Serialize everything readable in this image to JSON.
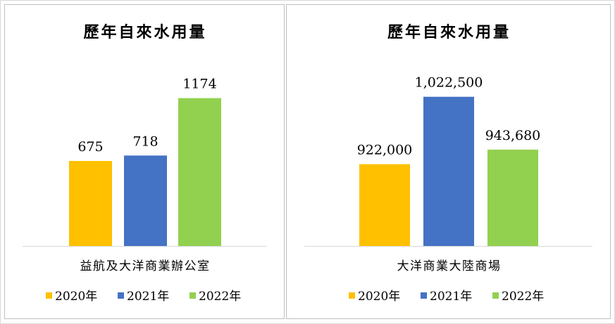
{
  "chart_data": [
    {
      "type": "bar",
      "title": "歷年自來水用量",
      "categories": [
        "益航及大洋商業辦公室"
      ],
      "series": [
        {
          "name": "2020年",
          "values": [
            675
          ],
          "label": "675",
          "color": "#ffc000"
        },
        {
          "name": "2021年",
          "values": [
            718
          ],
          "label": "718",
          "color": "#4472c4"
        },
        {
          "name": "2022年",
          "values": [
            1174
          ],
          "label": "1174",
          "color": "#92d050"
        }
      ],
      "ylim": [
        0,
        1300
      ],
      "legend": "bottom",
      "grid": false
    },
    {
      "type": "bar",
      "title": "歷年自來水用量",
      "categories": [
        "大洋商業大陸商場"
      ],
      "series": [
        {
          "name": "2020年",
          "values": [
            922000
          ],
          "label": "922,000",
          "color": "#ffc000"
        },
        {
          "name": "2021年",
          "values": [
            1022500
          ],
          "label": "1,022,500",
          "color": "#4472c4"
        },
        {
          "name": "2022年",
          "values": [
            943680
          ],
          "label": "943,680",
          "color": "#92d050"
        }
      ],
      "ylim": [
        800000,
        1040000
      ],
      "legend": "bottom",
      "grid": false
    }
  ]
}
